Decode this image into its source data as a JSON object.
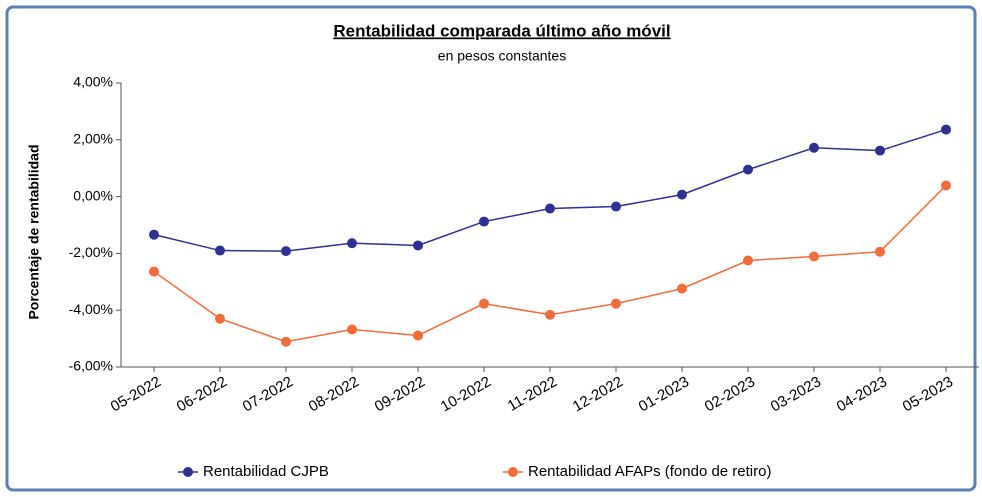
{
  "chart_data": {
    "type": "line",
    "title": "Rentabilidad comparada último año móvil",
    "subtitle": "en pesos constantes",
    "y_label": "Porcentaje de rentabilidad",
    "categories": [
      "05-2022",
      "06-2022",
      "07-2022",
      "08-2022",
      "09-2022",
      "10-2022",
      "11-2022",
      "12-2022",
      "01-2023",
      "02-2023",
      "03-2023",
      "04-2023",
      "05-2023"
    ],
    "series": [
      {
        "name": "Rentabilidad CJPB",
        "color": "#2e3192",
        "values": [
          -1.34,
          -1.9,
          -1.92,
          -1.64,
          -1.72,
          -0.88,
          -0.42,
          -0.35,
          0.07,
          0.95,
          1.72,
          1.62,
          2.36
        ]
      },
      {
        "name": "Rentabilidad AFAPs (fondo de retiro)",
        "color": "#f26b3a",
        "values": [
          -2.64,
          -4.3,
          -5.11,
          -4.68,
          -4.89,
          -3.77,
          -4.16,
          -3.77,
          -3.24,
          -2.25,
          -2.11,
          -1.94,
          0.39
        ]
      }
    ],
    "ylim": [
      -6,
      4
    ],
    "yticks": [
      {
        "value": -6,
        "label": "-6,00%"
      },
      {
        "value": -4,
        "label": "-4,00%"
      },
      {
        "value": -2,
        "label": "-2,00%"
      },
      {
        "value": 0,
        "label": "0,00%"
      },
      {
        "value": 2,
        "label": "2,00%"
      },
      {
        "value": 4,
        "label": "4,00%"
      }
    ],
    "grid": false,
    "legend": "bottom"
  }
}
